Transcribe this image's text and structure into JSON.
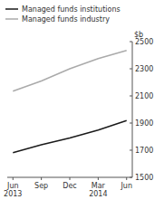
{
  "chart_data": {
    "type": "line",
    "ylabel": "$b",
    "categories": [
      "Jun\n2013",
      "Sep",
      "Dec",
      "Mar\n2014",
      "Jun"
    ],
    "series": [
      {
        "name": "Managed funds institutions",
        "color": "#1a1a1a",
        "values": [
          1682,
          1740,
          1790,
          1848,
          1918
        ]
      },
      {
        "name": "Managed funds industry",
        "color": "#aaaaaa",
        "values": [
          2135,
          2210,
          2300,
          2375,
          2435
        ]
      }
    ],
    "ylim": [
      1500,
      2500
    ],
    "yticks": [
      1500,
      1700,
      1900,
      2100,
      2300,
      2500
    ],
    "grid": false,
    "legend": "upper left"
  }
}
